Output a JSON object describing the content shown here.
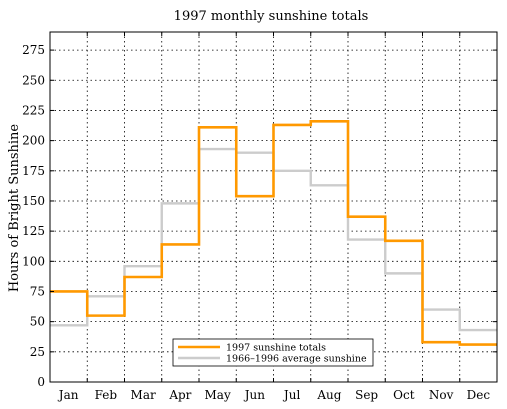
{
  "chart_data": {
    "type": "line",
    "step": true,
    "title": "1997 monthly sunshine totals",
    "ylabel": "Hours of Bright Sunshine",
    "xlabel": "",
    "categories": [
      "Jan",
      "Feb",
      "Mar",
      "Apr",
      "May",
      "Jun",
      "Jul",
      "Aug",
      "Sep",
      "Oct",
      "Nov",
      "Dec"
    ],
    "ylim": [
      0,
      290
    ],
    "yticks": [
      0,
      25,
      50,
      75,
      100,
      125,
      150,
      175,
      200,
      225,
      250,
      275
    ],
    "grid": true,
    "legend_position": "bottom-center",
    "series": [
      {
        "name": "1997 sunshine totals",
        "color": "#ff9900",
        "values": [
          75,
          55,
          87,
          114,
          211,
          154,
          213,
          216,
          137,
          117,
          33,
          31
        ]
      },
      {
        "name": "1966–1996 average sunshine",
        "color": "#cccccc",
        "values": [
          47,
          71,
          96,
          148,
          193,
          190,
          175,
          163,
          118,
          90,
          60,
          43
        ]
      }
    ]
  }
}
